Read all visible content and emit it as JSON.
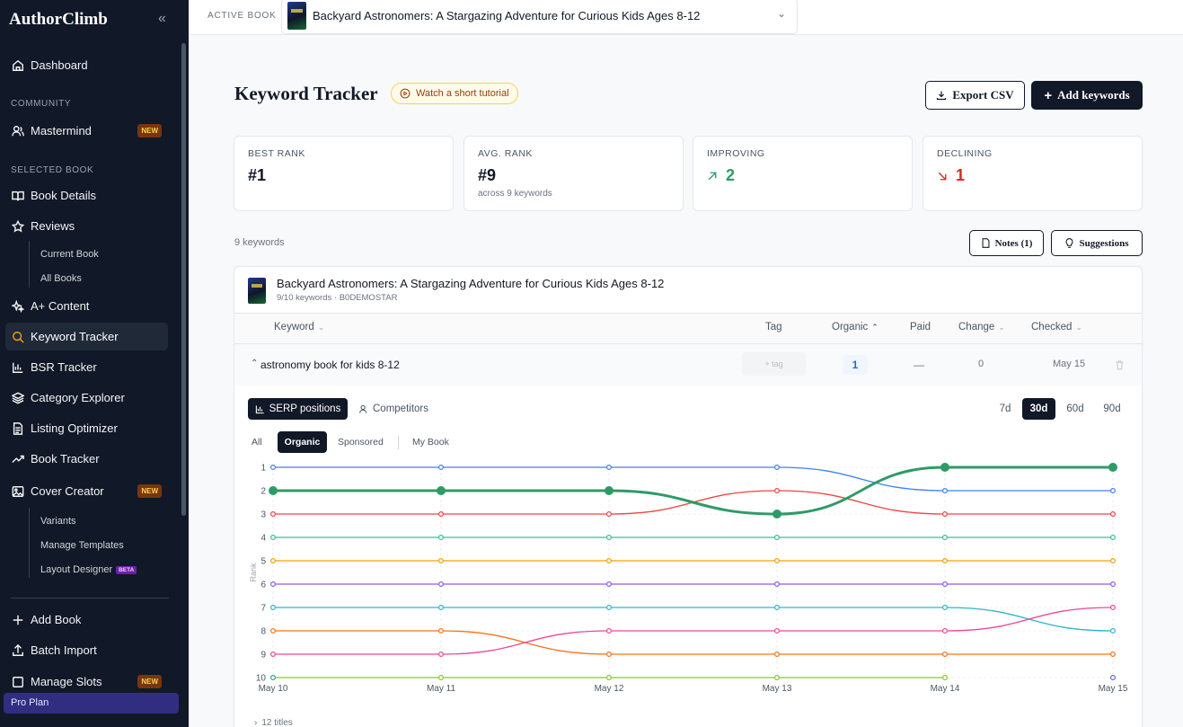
{
  "app": {
    "name": "AuthorClimb",
    "plan": "Pro Plan"
  },
  "sidebar": {
    "dashboard": "Dashboard",
    "community_label": "COMMUNITY",
    "mastermind": "Mastermind",
    "new_badge": "NEW",
    "selected_book_label": "SELECTED BOOK",
    "book_details": "Book Details",
    "reviews": "Reviews",
    "current_book": "Current Book",
    "all_books": "All Books",
    "aplus": "A+ Content",
    "keyword_tracker": "Keyword Tracker",
    "bsr_tracker": "BSR Tracker",
    "category_explorer": "Category Explorer",
    "listing_optimizer": "Listing Optimizer",
    "book_tracker": "Book Tracker",
    "cover_creator": "Cover Creator",
    "variants": "Variants",
    "manage_templates": "Manage Templates",
    "layout_designer": "Layout Designer",
    "beta_badge": "BETA",
    "add_book": "Add Book",
    "batch_import": "Batch Import",
    "manage_slots": "Manage Slots"
  },
  "topbar": {
    "active_book_label": "ACTIVE BOOK",
    "book_title": "Backyard Astronomers: A Stargazing Adventure for Curious Kids Ages 8-12"
  },
  "page": {
    "title": "Keyword Tracker",
    "tutorial": "Watch a short tutorial",
    "export_csv": "Export CSV",
    "add_keywords": "Add keywords"
  },
  "stats": {
    "best_rank_label": "BEST RANK",
    "best_rank": "#1",
    "avg_rank_label": "AVG. RANK",
    "avg_rank": "#9",
    "avg_rank_sub": "across 9 keywords",
    "improving_label": "IMPROVING",
    "improving": "2",
    "declining_label": "DECLINING",
    "declining": "1"
  },
  "toolbar": {
    "count": "9 keywords",
    "notes": "Notes (1)",
    "suggestions": "Suggestions"
  },
  "book": {
    "title": "Backyard Astronomers: A Stargazing Adventure for Curious Kids Ages 8-12",
    "meta": "9/10 keywords · B0DEMOSTAR"
  },
  "table": {
    "headers": {
      "keyword": "Keyword",
      "tag": "Tag",
      "organic": "Organic",
      "paid": "Paid",
      "change": "Change",
      "checked": "Checked"
    },
    "row": {
      "keyword": "astronomy book for kids 8-12",
      "tag_placeholder": "+ tag",
      "organic": "1",
      "paid": "—",
      "change": "0",
      "checked": "May 15"
    }
  },
  "chart_tabs": {
    "serp": "SERP positions",
    "competitors": "Competitors",
    "ranges": [
      "7d",
      "30d",
      "60d",
      "90d"
    ],
    "active_range": "30d",
    "filters": [
      "All",
      "Organic",
      "Sponsored",
      "My Book"
    ],
    "active_filter": "Organic"
  },
  "footer": {
    "titles": "12 titles"
  },
  "chart_data": {
    "type": "line",
    "x": [
      "May 10",
      "May 11",
      "May 12",
      "May 13",
      "May 14",
      "May 15"
    ],
    "ylabel": "Rank",
    "ylim": [
      10,
      1
    ],
    "y_reversed": true,
    "yticks": [
      1,
      2,
      3,
      4,
      5,
      6,
      7,
      8,
      9,
      10
    ],
    "series": [
      {
        "color": "#3b82f6",
        "values": [
          1,
          1,
          1,
          1,
          2,
          2
        ]
      },
      {
        "color": "#2e9b67",
        "values": [
          2,
          2,
          2,
          3,
          1,
          1
        ],
        "highlight": true
      },
      {
        "color": "#ef4444",
        "values": [
          3,
          3,
          3,
          2,
          3,
          3
        ]
      },
      {
        "color": "#34c48b",
        "values": [
          4,
          4,
          4,
          4,
          4,
          4
        ]
      },
      {
        "color": "#f59e0b",
        "values": [
          5,
          5,
          5,
          5,
          5,
          5
        ]
      },
      {
        "color": "#8b5cf6",
        "values": [
          6,
          6,
          6,
          6,
          6,
          6
        ]
      },
      {
        "color": "#2cb6c9",
        "values": [
          7,
          7,
          7,
          7,
          7,
          8
        ]
      },
      {
        "color": "#f97316",
        "values": [
          8,
          8,
          9,
          9,
          9,
          9
        ]
      },
      {
        "color": "#ec4899",
        "values": [
          9,
          9,
          8,
          8,
          8,
          7
        ]
      },
      {
        "color": "#84cc16",
        "values": [
          10,
          10,
          10,
          10,
          10,
          null
        ]
      },
      {
        "color": "#14b8a6",
        "values": [
          10,
          null,
          null,
          null,
          null,
          null
        ]
      },
      {
        "color": "#6366f1",
        "values": [
          null,
          null,
          null,
          null,
          null,
          10
        ]
      }
    ]
  }
}
